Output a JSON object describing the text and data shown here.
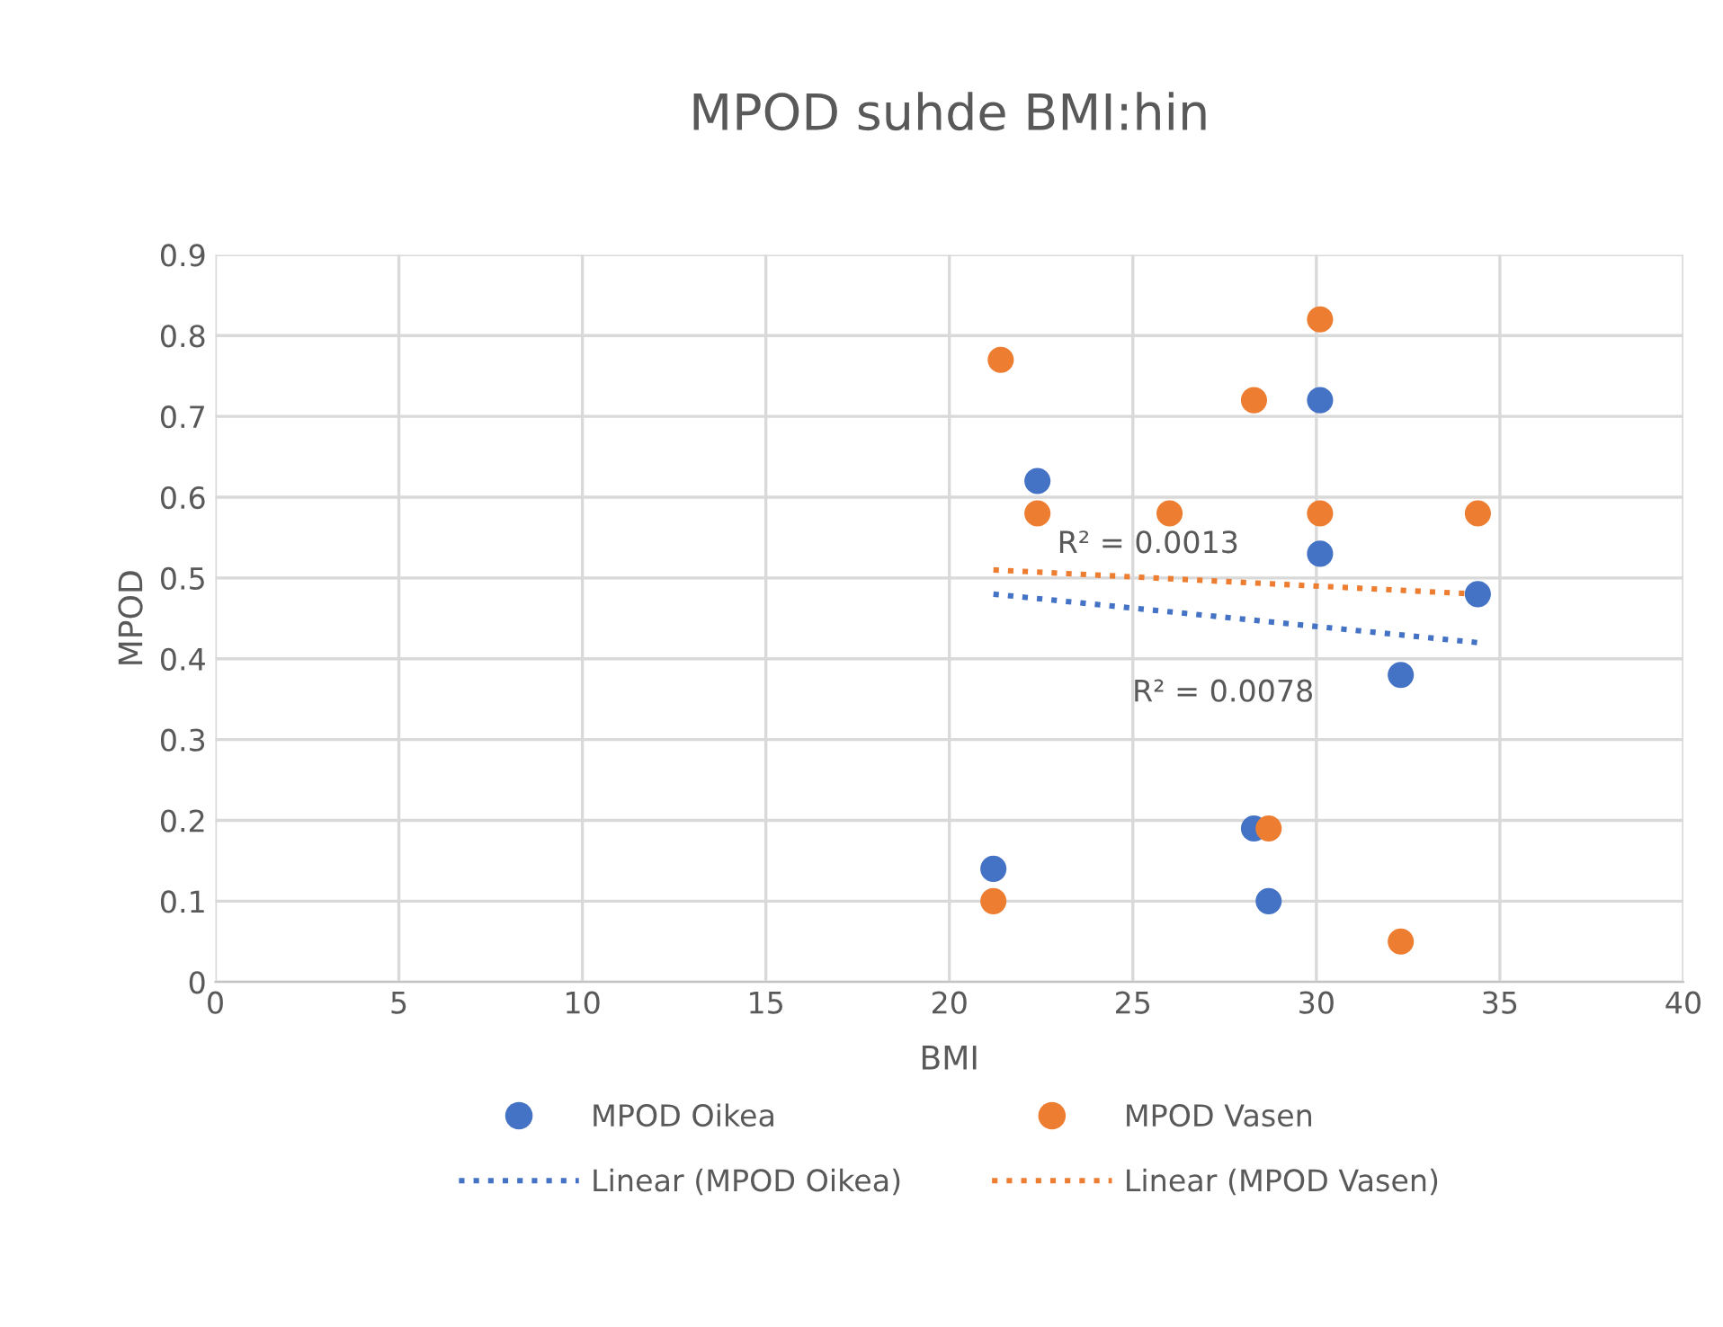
{
  "chart_data": {
    "type": "scatter",
    "title": "MPOD suhde BMI:hin",
    "xlabel": "BMI",
    "ylabel": "MPOD",
    "xlim": [
      0,
      40
    ],
    "xticks": [
      0,
      5,
      10,
      15,
      20,
      25,
      30,
      35,
      40
    ],
    "ylim": [
      0,
      0.9
    ],
    "yticks": [
      0,
      0.1,
      0.2,
      0.3,
      0.4,
      0.5,
      0.6,
      0.7,
      0.8,
      0.9
    ],
    "grid": true,
    "legend": "bottom",
    "marker": "circle",
    "series": [
      {
        "name": "MPOD Oikea",
        "color": "#4472c4",
        "x": [
          21.2,
          21.4,
          22.4,
          26.0,
          28.3,
          28.7,
          30.1,
          30.1,
          32.3,
          34.4
        ],
        "values": [
          0.14,
          null,
          0.62,
          null,
          0.19,
          0.1,
          0.72,
          0.53,
          0.38,
          0.48
        ]
      },
      {
        "name": "MPOD Vasen",
        "color": "#ed7d31",
        "x": [
          21.2,
          21.4,
          22.4,
          26.0,
          28.3,
          28.7,
          30.1,
          30.1,
          32.3,
          34.4
        ],
        "values": [
          0.1,
          0.77,
          0.58,
          0.58,
          0.72,
          0.19,
          0.82,
          0.58,
          0.05,
          0.58
        ]
      },
      {
        "name": "Linear (MPOD Oikea)",
        "type": "line",
        "color": "#4472c4",
        "marker": "none",
        "line_style": "dotted",
        "x": [
          21.2,
          34.4
        ],
        "values": [
          0.48,
          0.42
        ]
      },
      {
        "name": "Linear (MPOD Vasen)",
        "type": "line",
        "color": "#ed7d31",
        "marker": "none",
        "line_style": "dotted",
        "x": [
          21.2,
          34.4
        ],
        "values": [
          0.51,
          0.48
        ]
      }
    ],
    "annotations": [
      "R² = 0.0078",
      "R² = 0.0013"
    ]
  }
}
